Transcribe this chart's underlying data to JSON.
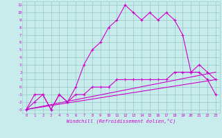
{
  "xlabel": "Windchill (Refroidissement éolien,°C)",
  "background_color": "#c8ecec",
  "grid_color": "#9ecece",
  "line_color": "#cc00cc",
  "xlim": [
    -0.5,
    23.5
  ],
  "ylim": [
    -3.5,
    11.5
  ],
  "xticks": [
    0,
    1,
    2,
    3,
    4,
    5,
    6,
    7,
    8,
    9,
    10,
    11,
    12,
    13,
    14,
    15,
    16,
    17,
    18,
    19,
    20,
    21,
    22,
    23
  ],
  "yticks": [
    11,
    10,
    9,
    8,
    7,
    6,
    5,
    4,
    3,
    2,
    1,
    0,
    -1,
    -2,
    -3
  ],
  "main_line_x": [
    0,
    1,
    2,
    3,
    3,
    4,
    5,
    6,
    7,
    8,
    9,
    10,
    11,
    12,
    13,
    14,
    15,
    16,
    17,
    18,
    19,
    20,
    21,
    22,
    23
  ],
  "main_line_y": [
    -3,
    -2,
    -1,
    -3,
    -3,
    -1,
    -2,
    0,
    3,
    5,
    6,
    8,
    9,
    11,
    10,
    9,
    10,
    9,
    10,
    9,
    7,
    2,
    2,
    1,
    -1
  ],
  "line2_x": [
    0,
    1,
    2,
    3,
    4,
    5,
    6,
    7,
    8,
    9,
    10,
    11,
    12,
    13,
    14,
    15,
    16,
    17,
    18,
    19,
    20,
    21,
    22,
    23
  ],
  "line2_y": [
    -3,
    -1,
    -1,
    -3,
    -1,
    -2,
    -1,
    -1,
    0,
    0,
    0,
    1,
    1,
    1,
    1,
    1,
    1,
    1,
    2,
    2,
    2,
    3,
    2,
    1
  ],
  "line3_x": [
    0,
    23
  ],
  "line3_y": [
    -3,
    2
  ],
  "line4_x": [
    0,
    23
  ],
  "line4_y": [
    -3,
    1
  ]
}
